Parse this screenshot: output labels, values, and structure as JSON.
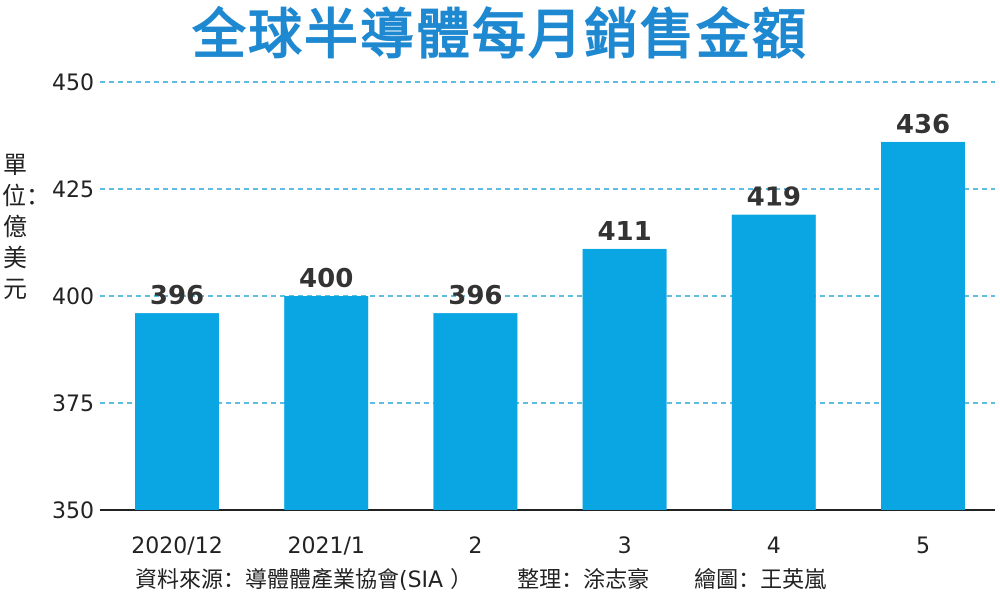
{
  "chart_data": {
    "type": "bar",
    "title": "全球半導體每月銷售金額",
    "ylabel": "單位：億美元",
    "xlabel": "",
    "categories": [
      "2020/12",
      "2021/1",
      "2",
      "3",
      "4",
      "5"
    ],
    "values": [
      396,
      400,
      396,
      411,
      419,
      436
    ],
    "ylim": [
      350,
      450
    ],
    "yticks": [
      350,
      375,
      400,
      425,
      450
    ],
    "grid": true,
    "bar_color": "#0aa5e3",
    "grid_color": "#2aa7d9",
    "label_color": "#333333"
  },
  "footer": {
    "source": "資料來源：導體體產業協會(SIA ）",
    "editor": "整理：涂志豪",
    "illustrator": "繪圖：王英嵐"
  }
}
